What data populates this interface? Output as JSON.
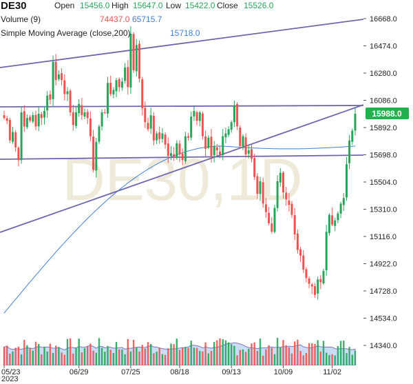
{
  "header": {
    "symbol": "DE30",
    "open_label": "Open",
    "open_value": "15456.0",
    "high_label": "High",
    "high_value": "15647.0",
    "low_label": "Low",
    "low_value": "15422.0",
    "close_label": "Close",
    "close_value": "15526.0",
    "volume_label": "Volume (9)",
    "volume_value1": "74437.0",
    "volume_value2": "65715.7",
    "sma_label": "Simple Moving Average (close,200)",
    "sma_value": "15718.0"
  },
  "watermark": "DE30,1D",
  "colors": {
    "up": "#26a65b",
    "down": "#ef5350",
    "sma": "#3f7fd6",
    "trend": "#6f66b0",
    "last_price_bg": "#22b14c",
    "volume_area": "#bcd4f2"
  },
  "last_price": "15988.0",
  "chart_data": {
    "type": "candlestick",
    "y_axis": {
      "min": 14340,
      "max": 16668,
      "ticks": [
        "16668.0",
        "16474.0",
        "16280.0",
        "16086.0",
        "15892.0",
        "15698.0",
        "15504.0",
        "15310.0",
        "15116.0",
        "14922.0",
        "14728.0",
        "14534.0",
        "14340.0"
      ]
    },
    "x_ticks": [
      {
        "label": "05/23",
        "index": 0
      },
      {
        "label": "06/29",
        "index": 26
      },
      {
        "label": "07/25",
        "index": 44
      },
      {
        "label": "08/18",
        "index": 61
      },
      {
        "label": "09/13",
        "index": 79
      },
      {
        "label": "10/09",
        "index": 97
      },
      {
        "label": "11/02",
        "index": 114
      }
    ],
    "x_sub_label": "2023",
    "closes": [
      15960,
      15940,
      15800,
      15860,
      15750,
      15660,
      16000,
      15900,
      15960,
      15940,
      15980,
      15900,
      15990,
      15960,
      16010,
      16120,
      16090,
      16360,
      16230,
      16270,
      16230,
      16130,
      16150,
      16000,
      15910,
      16000,
      16060,
      15980,
      16000,
      15960,
      15830,
      15590,
      15790,
      15900,
      16000,
      16000,
      16210,
      16130,
      16160,
      16230,
      16180,
      16220,
      16320,
      16180,
      16560,
      16300,
      16480,
      16240,
      16030,
      15930,
      15880,
      15980,
      15800,
      15850,
      15810,
      15850,
      15770,
      15690,
      15710,
      15680,
      15780,
      15700,
      15660,
      15830,
      15820,
      15970,
      16010,
      15940,
      16000,
      15830,
      15740,
      15820,
      15690,
      15760,
      15730,
      15700,
      15830,
      15850,
      15880,
      15930,
      16050,
      15900,
      15760,
      15830,
      15700,
      15730,
      15670,
      15540,
      15420,
      15510,
      15350,
      15290,
      15210,
      15150,
      15320,
      15510,
      15570,
      15430,
      15380,
      15340,
      15270,
      15130,
      15020,
      14980,
      14880,
      14820,
      14780,
      14760,
      14700,
      14810,
      14790,
      14870,
      15150,
      15270,
      15200,
      15230,
      15280,
      15350,
      15390,
      15630,
      15800,
      15870,
      15990
    ]
  }
}
